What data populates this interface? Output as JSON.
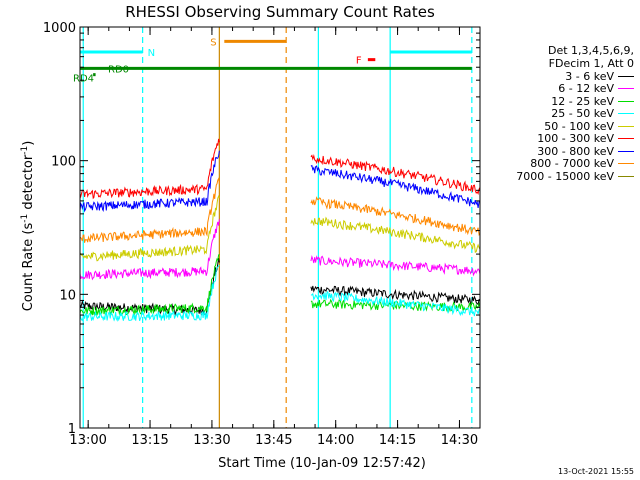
{
  "chart_data": {
    "type": "line",
    "title": "RHESSI Observing Summary Count Rates",
    "xlabel": "Start Time (10-Jan-09 12:57:42)",
    "ylabel_prefix": "Count Rate (s",
    "ylabel_sup": "-1",
    "ylabel_suffix": " detector",
    "ylabel_end": ")",
    "y_scale": "log",
    "ylim": [
      1,
      1000
    ],
    "xlim_minutes": [
      12.967,
      14.583
    ],
    "x_ticks": [
      {
        "label": "13:00",
        "value": 13.0
      },
      {
        "label": "13:15",
        "value": 13.25
      },
      {
        "label": "13:30",
        "value": 13.5
      },
      {
        "label": "13:45",
        "value": 13.75
      },
      {
        "label": "14:00",
        "value": 14.0
      },
      {
        "label": "14:15",
        "value": 14.25
      },
      {
        "label": "14:30",
        "value": 14.5
      }
    ],
    "y_ticks": [
      {
        "label": "1",
        "value": 1
      },
      {
        "label": "10",
        "value": 10
      },
      {
        "label": "100",
        "value": 100
      },
      {
        "label": "1000",
        "value": 1000
      }
    ],
    "legend_header": [
      "Det 1,3,4,5,6,9,",
      "FDecim 1, Att 0"
    ],
    "series": [
      {
        "name": "3 - 6 keV",
        "color": "#000000",
        "pre": [
          8.2,
          7.5
        ],
        "post": [
          11,
          9
        ]
      },
      {
        "name": "6 - 12 keV",
        "color": "#ff00ff",
        "pre": [
          14,
          15
        ],
        "post": [
          18,
          15
        ]
      },
      {
        "name": "12 - 25 keV",
        "color": "#00dd00",
        "pre": [
          7.5,
          8
        ],
        "post": [
          8.5,
          8
        ]
      },
      {
        "name": "25 - 50 keV",
        "color": "#00ffff",
        "pre": [
          6.8,
          7.0
        ],
        "post": [
          10,
          7.3
        ]
      },
      {
        "name": "50 - 100 keV",
        "color": "#cccc00",
        "pre": [
          19,
          22
        ],
        "post": [
          36,
          22
        ]
      },
      {
        "name": "100 - 300 keV",
        "color": "#ff0000",
        "pre": [
          56,
          62
        ],
        "post": [
          105,
          60
        ]
      },
      {
        "name": "300 - 800 keV",
        "color": "#0000ff",
        "pre": [
          45,
          50
        ],
        "post": [
          86,
          47
        ]
      },
      {
        "name": "800 - 7000 keV",
        "color": "#ff8800",
        "pre": [
          26,
          30
        ],
        "post": [
          50,
          29
        ]
      },
      {
        "name": "7000 - 15000 keV",
        "color": "#888800",
        "pre": [],
        "post": []
      }
    ],
    "flags": [
      {
        "label": "N",
        "color": "#00ffff",
        "y": 650,
        "segments": [
          [
            12.967,
            13.22
          ],
          [
            14.22,
            14.55
          ]
        ]
      },
      {
        "label": "S",
        "color": "#ee8800",
        "y": 780,
        "segments": [
          [
            13.55,
            13.8
          ]
        ]
      },
      {
        "label": "F",
        "color": "#ff0000",
        "y": 570,
        "segments": [
          [
            14.13,
            14.16
          ]
        ]
      },
      {
        "label": "RD0",
        "color": "#008800",
        "y": 490,
        "segments": [
          [
            12.967,
            14.55
          ]
        ]
      },
      {
        "label": "RD4",
        "color": "#008800",
        "y": 440,
        "segments": [
          [
            13.02,
            13.03
          ]
        ]
      }
    ],
    "vlines": [
      {
        "x": 12.98,
        "color": "#00ffff",
        "style": "solid"
      },
      {
        "x": 13.22,
        "color": "#00ffff",
        "style": "dashed"
      },
      {
        "x": 13.53,
        "color": "#cc8800",
        "style": "solid"
      },
      {
        "x": 13.8,
        "color": "#ee8800",
        "style": "dashed"
      },
      {
        "x": 13.93,
        "color": "#00ffff",
        "style": "solid"
      },
      {
        "x": 14.22,
        "color": "#00ffff",
        "style": "solid"
      },
      {
        "x": 14.55,
        "color": "#00ffff",
        "style": "dashed"
      }
    ],
    "data_gaps": [
      [
        13.53,
        13.9
      ]
    ],
    "timestamp": "13-Oct-2021 15:55"
  }
}
